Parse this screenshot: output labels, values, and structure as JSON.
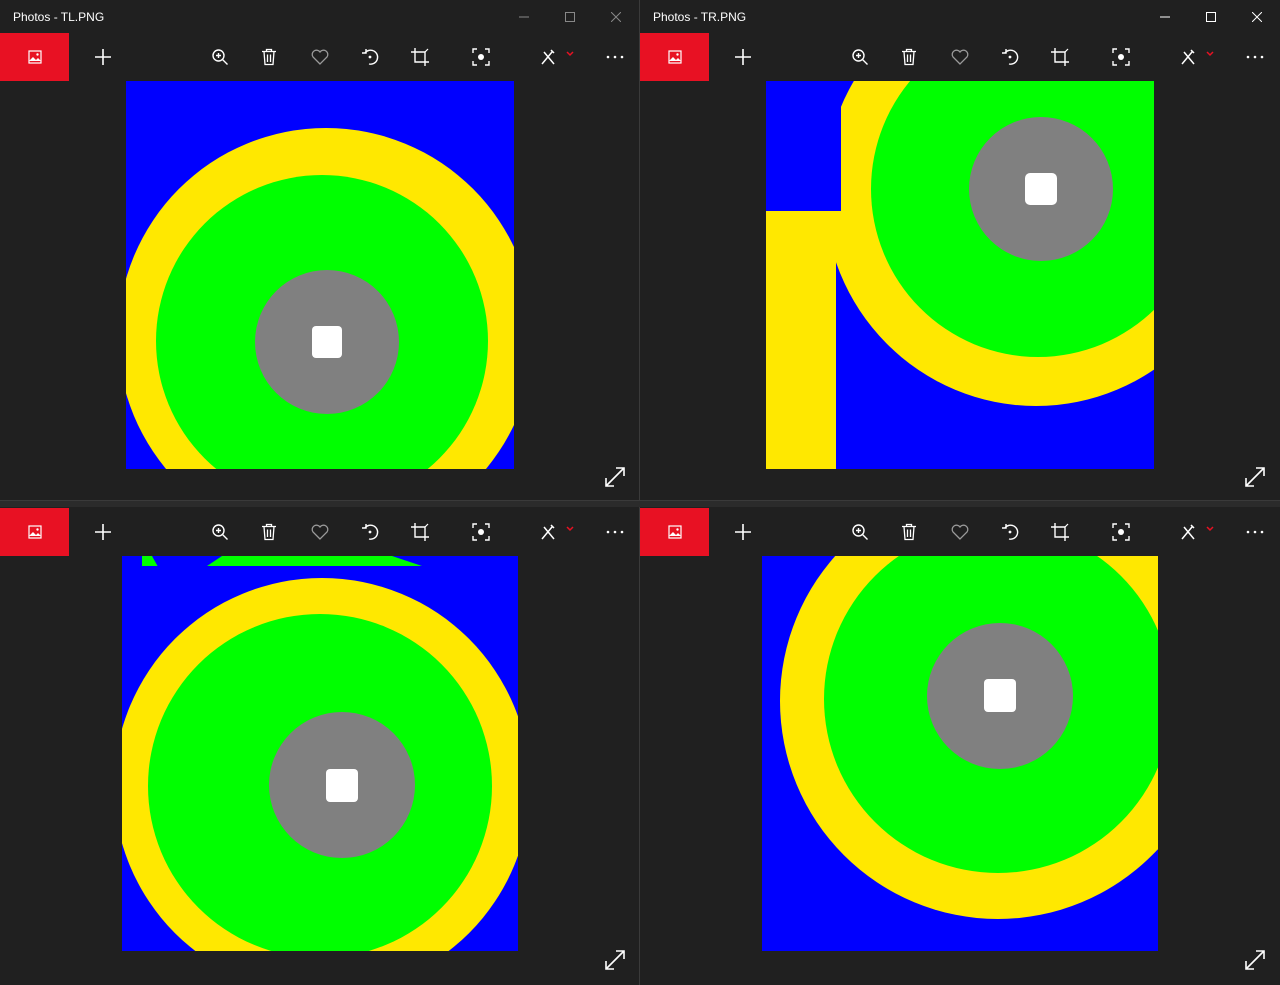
{
  "windows": {
    "tl": {
      "title": "Photos - TL.PNG"
    },
    "tr": {
      "title": "Photos - TR.PNG"
    }
  },
  "icons": {
    "home": "image-icon",
    "add": "plus-icon",
    "zoom": "zoom-in-icon",
    "delete": "trash-icon",
    "favorite": "heart-icon",
    "rotate": "rotate-icon",
    "crop": "crop-icon",
    "face": "face-scan-icon",
    "edit": "edit-draw-icon",
    "more": "ellipsis-icon",
    "expand": "expand-icon",
    "minimize": "minimize-icon",
    "maximize": "maximize-icon",
    "close": "close-icon"
  },
  "colors": {
    "accent": "#e81123",
    "background": "#202020",
    "ring_blue": "#0000ff",
    "ring_yellow": "#ffe800",
    "ring_green": "#00ff00",
    "ring_gray": "#808080",
    "ring_white": "#ffffff"
  }
}
